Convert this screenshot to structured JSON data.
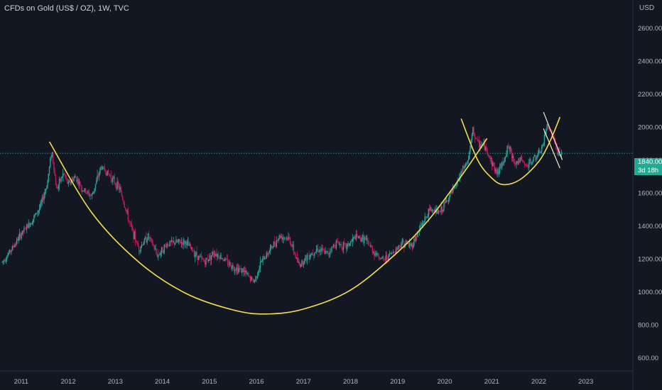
{
  "header": {
    "title": "CFDs on Gold (US$ / OZ), 1W, TVC",
    "currency": "USD"
  },
  "price_label": {
    "price": "1840.00",
    "countdown": "3d 18h"
  },
  "colors": {
    "background": "#131722",
    "up": "#26a69a",
    "down": "#c2185b",
    "annotation": "#f5e04a",
    "axis_text": "#b2b5be",
    "last_price": "#22ab94"
  },
  "chart_data": {
    "type": "candlestick",
    "x_ticks": [
      "2011",
      "2012",
      "2013",
      "2014",
      "2015",
      "2016",
      "2017",
      "2018",
      "2019",
      "2020",
      "2021",
      "2022",
      "2023"
    ],
    "y_ticks": [
      "600.00",
      "800.00",
      "1000.00",
      "1200.00",
      "1400.00",
      "1600.00",
      "1800.00",
      "2000.00",
      "2200.00",
      "2400.00",
      "2600.00"
    ],
    "ylim": [
      520,
      2770
    ],
    "xlim": [
      2010.55,
      2024.0
    ],
    "last_price": 1840,
    "price_path": [
      [
        2010.6,
        1180
      ],
      [
        2010.8,
        1260
      ],
      [
        2011.0,
        1350
      ],
      [
        2011.2,
        1420
      ],
      [
        2011.4,
        1510
      ],
      [
        2011.55,
        1650
      ],
      [
        2011.65,
        1860
      ],
      [
        2011.75,
        1620
      ],
      [
        2011.9,
        1720
      ],
      [
        2012.0,
        1650
      ],
      [
        2012.15,
        1700
      ],
      [
        2012.3,
        1620
      ],
      [
        2012.5,
        1580
      ],
      [
        2012.7,
        1760
      ],
      [
        2012.9,
        1700
      ],
      [
        2013.1,
        1620
      ],
      [
        2013.3,
        1420
      ],
      [
        2013.5,
        1260
      ],
      [
        2013.7,
        1340
      ],
      [
        2013.9,
        1220
      ],
      [
        2014.1,
        1290
      ],
      [
        2014.3,
        1300
      ],
      [
        2014.5,
        1300
      ],
      [
        2014.7,
        1230
      ],
      [
        2014.9,
        1180
      ],
      [
        2015.1,
        1240
      ],
      [
        2015.3,
        1200
      ],
      [
        2015.5,
        1150
      ],
      [
        2015.7,
        1130
      ],
      [
        2015.95,
        1060
      ],
      [
        2016.1,
        1180
      ],
      [
        2016.3,
        1260
      ],
      [
        2016.5,
        1340
      ],
      [
        2016.7,
        1320
      ],
      [
        2016.9,
        1160
      ],
      [
        2017.1,
        1220
      ],
      [
        2017.3,
        1260
      ],
      [
        2017.5,
        1230
      ],
      [
        2017.7,
        1300
      ],
      [
        2017.9,
        1270
      ],
      [
        2018.1,
        1330
      ],
      [
        2018.3,
        1320
      ],
      [
        2018.5,
        1240
      ],
      [
        2018.7,
        1190
      ],
      [
        2018.9,
        1240
      ],
      [
        2019.1,
        1300
      ],
      [
        2019.3,
        1280
      ],
      [
        2019.5,
        1400
      ],
      [
        2019.7,
        1500
      ],
      [
        2019.9,
        1480
      ],
      [
        2020.1,
        1580
      ],
      [
        2020.2,
        1620
      ],
      [
        2020.35,
        1720
      ],
      [
        2020.5,
        1800
      ],
      [
        2020.6,
        1980
      ],
      [
        2020.7,
        1900
      ],
      [
        2020.85,
        1880
      ],
      [
        2020.95,
        1820
      ],
      [
        2021.1,
        1720
      ],
      [
        2021.2,
        1760
      ],
      [
        2021.35,
        1880
      ],
      [
        2021.5,
        1780
      ],
      [
        2021.6,
        1800
      ],
      [
        2021.75,
        1760
      ],
      [
        2021.9,
        1810
      ],
      [
        2022.0,
        1830
      ],
      [
        2022.1,
        1900
      ],
      [
        2022.18,
        2020
      ],
      [
        2022.3,
        1940
      ],
      [
        2022.4,
        1840
      ],
      [
        2022.5,
        1830
      ]
    ],
    "annotations": {
      "large_cup": [
        [
          2011.6,
          1910
        ],
        [
          2012.5,
          1480
        ],
        [
          2013.5,
          1180
        ],
        [
          2014.5,
          990
        ],
        [
          2015.5,
          890
        ],
        [
          2016.2,
          865
        ],
        [
          2017.0,
          895
        ],
        [
          2018.0,
          1010
        ],
        [
          2019.0,
          1240
        ],
        [
          2019.7,
          1450
        ],
        [
          2020.4,
          1720
        ],
        [
          2020.9,
          1930
        ]
      ],
      "small_cup": [
        [
          2020.35,
          2050
        ],
        [
          2020.7,
          1800
        ],
        [
          2021.0,
          1690
        ],
        [
          2021.25,
          1650
        ],
        [
          2021.6,
          1680
        ],
        [
          2022.0,
          1790
        ],
        [
          2022.25,
          1920
        ],
        [
          2022.45,
          2060
        ]
      ],
      "pennant_upper": [
        [
          2022.1,
          2090
        ],
        [
          2022.5,
          1800
        ]
      ],
      "pennant_lower": [
        [
          2022.1,
          1990
        ],
        [
          2022.45,
          1750
        ]
      ]
    }
  }
}
